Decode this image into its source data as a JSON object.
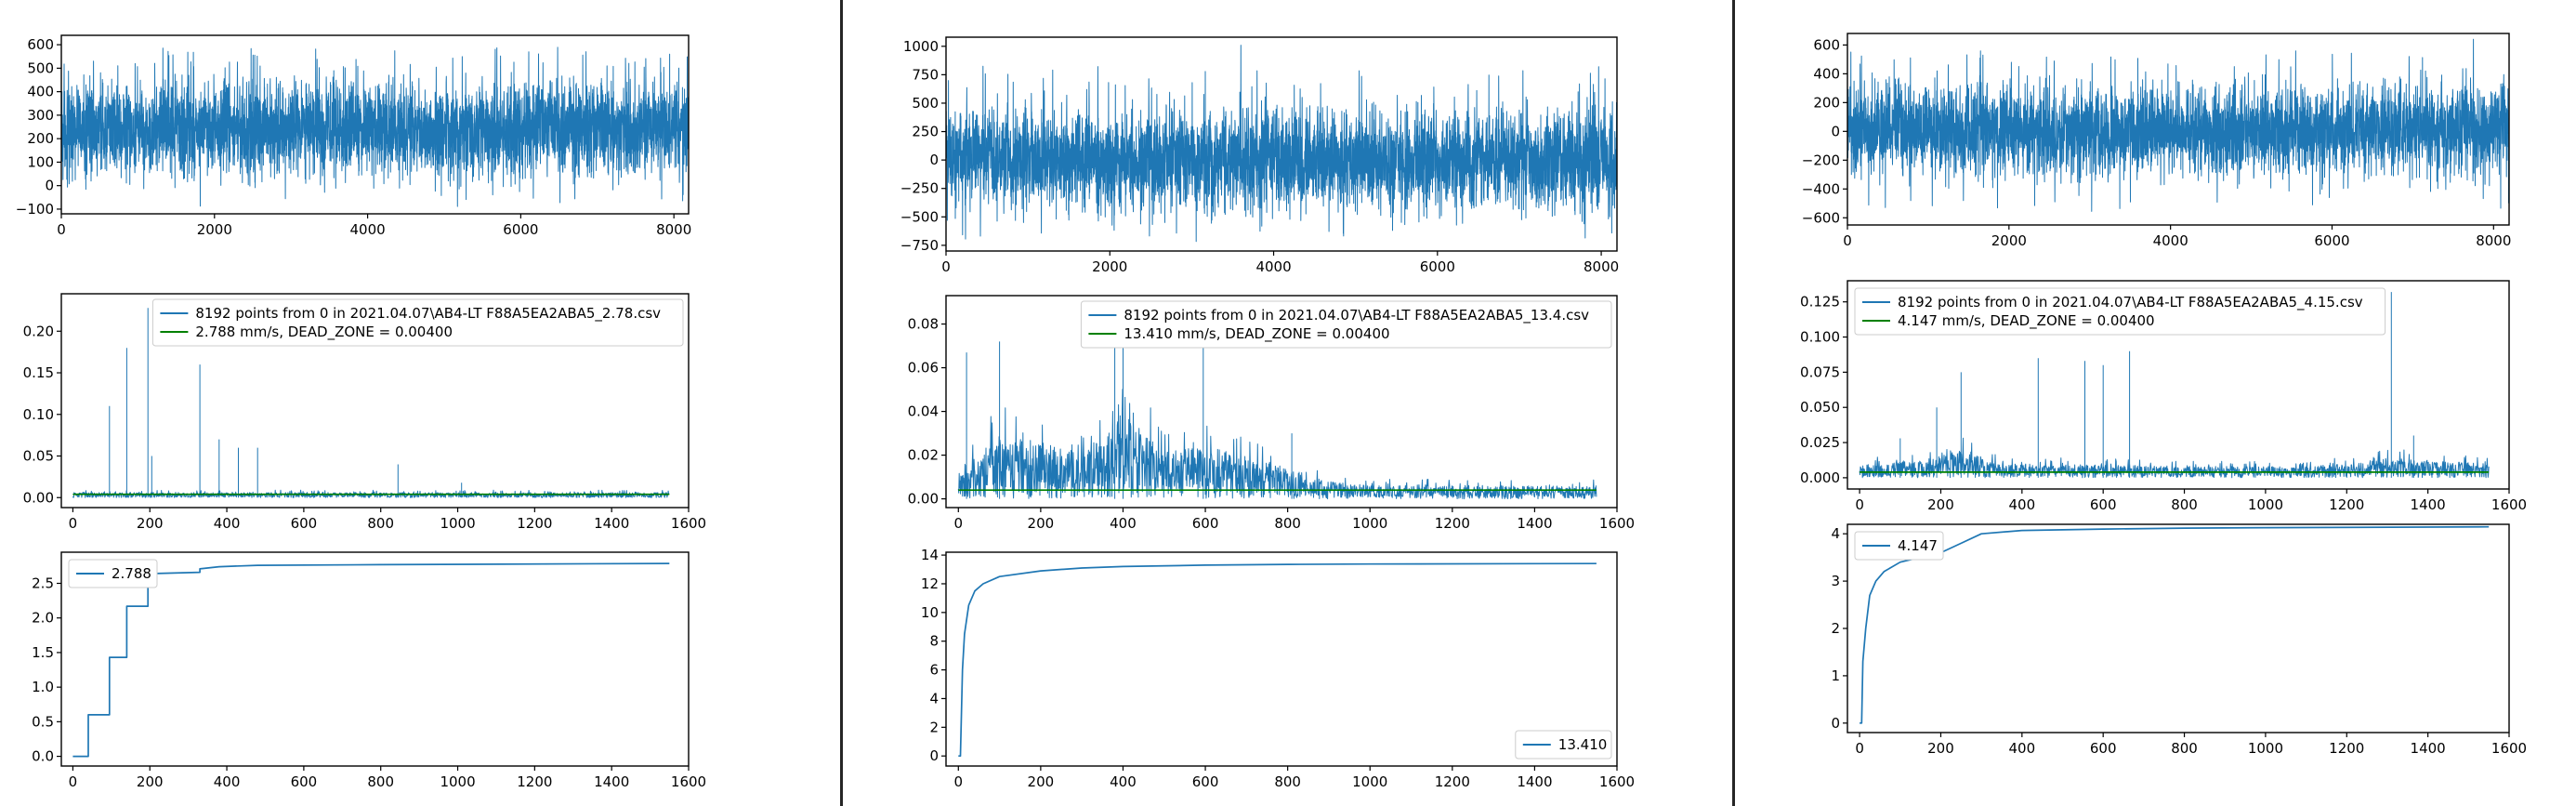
{
  "colors": {
    "blue": "#1f77b4",
    "green": "#008000",
    "divider": "#262626"
  },
  "chart_data": [
    {
      "type": "line",
      "position": "column-1 top",
      "xlim": [
        0,
        8192
      ],
      "ylim": [
        -120,
        640
      ],
      "xticks": [
        0,
        2000,
        4000,
        6000,
        8000
      ],
      "yticks": [
        -100,
        0,
        100,
        200,
        300,
        400,
        500,
        600
      ],
      "series": [
        {
          "color": "#1f77b4",
          "signal": {
            "n": 8192,
            "mean": 240,
            "spread": 95,
            "peak_min": 500,
            "peak_max": 590,
            "trough_min": -95,
            "trough_max": 40
          }
        }
      ],
      "legend": null
    },
    {
      "type": "line",
      "position": "column-1 middle",
      "xlim": [
        -30,
        1600
      ],
      "ylim": [
        -0.012,
        0.245
      ],
      "xticks": [
        0,
        200,
        400,
        600,
        800,
        1000,
        1200,
        1400,
        1600
      ],
      "yticks": [
        0.0,
        0.05,
        0.1,
        0.15,
        0.2
      ],
      "ytick_labels": [
        "0.00",
        "0.05",
        "0.10",
        "0.15",
        "0.20"
      ],
      "series": [
        {
          "name": "8192 points from 0  in  2021.04.07\\AB4-LT F88A5EA2ABA5_2.78.csv",
          "color": "#1f77b4",
          "spikes": [
            [
              95,
              0.11
            ],
            [
              140,
              0.18
            ],
            [
              195,
              0.228
            ],
            [
              205,
              0.05
            ],
            [
              330,
              0.16
            ],
            [
              380,
              0.07
            ],
            [
              430,
              0.06
            ],
            [
              480,
              0.06
            ],
            [
              845,
              0.04
            ],
            [
              1010,
              0.018
            ]
          ],
          "baseline": 0.006
        },
        {
          "name": "2.788 mm/s,   DEAD_ZONE = 0.00400",
          "color": "#008000",
          "constant": 0.004
        }
      ],
      "legend": "top-right"
    },
    {
      "type": "line",
      "position": "column-1 bottom",
      "xlim": [
        -30,
        1600
      ],
      "ylim": [
        -0.14,
        2.95
      ],
      "xticks": [
        0,
        200,
        400,
        600,
        800,
        1000,
        1200,
        1400,
        1600
      ],
      "yticks": [
        0.0,
        0.5,
        1.0,
        1.5,
        2.0,
        2.5
      ],
      "ytick_labels": [
        "0.0",
        "0.5",
        "1.0",
        "1.5",
        "2.0",
        "2.5"
      ],
      "series": [
        {
          "name": "2.788",
          "color": "#1f77b4",
          "points": [
            [
              0,
              0.0
            ],
            [
              40,
              0.0
            ],
            [
              40,
              0.6
            ],
            [
              95,
              0.6
            ],
            [
              95,
              1.43
            ],
            [
              140,
              1.43
            ],
            [
              140,
              2.17
            ],
            [
              195,
              2.17
            ],
            [
              195,
              2.64
            ],
            [
              330,
              2.66
            ],
            [
              330,
              2.71
            ],
            [
              380,
              2.74
            ],
            [
              480,
              2.76
            ],
            [
              800,
              2.77
            ],
            [
              1550,
              2.788
            ]
          ]
        }
      ],
      "legend": "top-left"
    },
    {
      "type": "line",
      "position": "column-2 top",
      "xlim": [
        0,
        8192
      ],
      "ylim": [
        -800,
        1080
      ],
      "xticks": [
        0,
        2000,
        4000,
        6000,
        8000
      ],
      "yticks": [
        -750,
        -500,
        -250,
        0,
        250,
        500,
        750,
        1000
      ],
      "series": [
        {
          "color": "#1f77b4",
          "signal": {
            "n": 8192,
            "mean": 0,
            "spread": 210,
            "peak_min": 550,
            "peak_max": 830,
            "trough_min": -720,
            "trough_max": -450,
            "max_spike": [
              3600,
              1010
            ]
          }
        }
      ],
      "legend": null
    },
    {
      "type": "line",
      "position": "column-2 middle",
      "xlim": [
        -30,
        1600
      ],
      "ylim": [
        -0.004,
        0.093
      ],
      "xticks": [
        0,
        200,
        400,
        600,
        800,
        1000,
        1200,
        1400,
        1600
      ],
      "yticks": [
        0.0,
        0.02,
        0.04,
        0.06,
        0.08
      ],
      "ytick_labels": [
        "0.00",
        "0.02",
        "0.04",
        "0.06",
        "0.08"
      ],
      "series": [
        {
          "name": "8192 points from 0  in  2021.04.07\\AB4-LT F88A5EA2ABA5_13.4.csv",
          "color": "#1f77b4",
          "envelope": [
            [
              0,
              0.012
            ],
            [
              100,
              0.03
            ],
            [
              200,
              0.026
            ],
            [
              300,
              0.02
            ],
            [
              400,
              0.04
            ],
            [
              500,
              0.022
            ],
            [
              600,
              0.024
            ],
            [
              700,
              0.02
            ],
            [
              800,
              0.014
            ],
            [
              900,
              0.008
            ],
            [
              1000,
              0.006
            ],
            [
              1550,
              0.006
            ]
          ],
          "spikes": [
            [
              20,
              0.067
            ],
            [
              100,
              0.072
            ],
            [
              380,
              0.088
            ],
            [
              400,
              0.085
            ],
            [
              595,
              0.073
            ],
            [
              810,
              0.03
            ]
          ]
        },
        {
          "name": "13.410 mm/s,   DEAD_ZONE = 0.00400",
          "color": "#008000",
          "constant": 0.004
        }
      ],
      "legend": "top-right"
    },
    {
      "type": "line",
      "position": "column-2 bottom",
      "xlim": [
        -30,
        1600
      ],
      "ylim": [
        -0.7,
        14.2
      ],
      "xticks": [
        0,
        200,
        400,
        600,
        800,
        1000,
        1200,
        1400,
        1600
      ],
      "yticks": [
        0,
        2,
        4,
        6,
        8,
        10,
        12,
        14
      ],
      "series": [
        {
          "name": "13.410",
          "color": "#1f77b4",
          "points": [
            [
              0,
              0
            ],
            [
              5,
              0
            ],
            [
              10,
              6
            ],
            [
              15,
              8.5
            ],
            [
              25,
              10.5
            ],
            [
              40,
              11.5
            ],
            [
              60,
              12
            ],
            [
              100,
              12.5
            ],
            [
              200,
              12.9
            ],
            [
              300,
              13.1
            ],
            [
              400,
              13.2
            ],
            [
              600,
              13.3
            ],
            [
              800,
              13.35
            ],
            [
              1000,
              13.38
            ],
            [
              1550,
              13.41
            ]
          ]
        }
      ],
      "legend": "bottom-right"
    },
    {
      "type": "line",
      "position": "column-3 top",
      "xlim": [
        0,
        8192
      ],
      "ylim": [
        -650,
        680
      ],
      "xticks": [
        0,
        2000,
        4000,
        6000,
        8000
      ],
      "yticks": [
        -600,
        -400,
        -200,
        0,
        200,
        400,
        600
      ],
      "series": [
        {
          "color": "#1f77b4",
          "signal": {
            "n": 8192,
            "mean": 0,
            "spread": 150,
            "peak_min": 320,
            "peak_max": 560,
            "trough_min": -560,
            "trough_max": -300,
            "max_spike": [
              7750,
              640
            ]
          }
        }
      ],
      "legend": null
    },
    {
      "type": "line",
      "position": "column-3 middle",
      "xlim": [
        -30,
        1600
      ],
      "ylim": [
        -0.008,
        0.14
      ],
      "xticks": [
        0,
        200,
        400,
        600,
        800,
        1000,
        1200,
        1400,
        1600
      ],
      "yticks": [
        0.0,
        0.025,
        0.05,
        0.075,
        0.1,
        0.125
      ],
      "ytick_labels": [
        "0.000",
        "0.025",
        "0.050",
        "0.075",
        "0.100",
        "0.125"
      ],
      "series": [
        {
          "name": "8192 points from 0  in  2021.04.07\\AB4-LT F88A5EA2ABA5_4.15.csv",
          "color": "#1f77b4",
          "envelope": [
            [
              0,
              0.009
            ],
            [
              150,
              0.012
            ],
            [
              250,
              0.02
            ],
            [
              350,
              0.01
            ],
            [
              600,
              0.009
            ],
            [
              900,
              0.008
            ],
            [
              1100,
              0.008
            ],
            [
              1200,
              0.01
            ],
            [
              1300,
              0.014
            ],
            [
              1400,
              0.012
            ],
            [
              1550,
              0.01
            ]
          ],
          "spikes": [
            [
              100,
              0.028
            ],
            [
              190,
              0.05
            ],
            [
              250,
              0.075
            ],
            [
              440,
              0.085
            ],
            [
              555,
              0.083
            ],
            [
              600,
              0.08
            ],
            [
              665,
              0.09
            ],
            [
              1310,
              0.132
            ],
            [
              1365,
              0.03
            ]
          ]
        },
        {
          "name": "4.147 mm/s,   DEAD_ZONE = 0.00400",
          "color": "#008000",
          "constant": 0.004
        }
      ],
      "legend": "top-left"
    },
    {
      "type": "line",
      "position": "column-3 bottom",
      "xlim": [
        -30,
        1600
      ],
      "ylim": [
        -0.2,
        4.2
      ],
      "xticks": [
        0,
        200,
        400,
        600,
        800,
        1000,
        1200,
        1400,
        1600
      ],
      "yticks": [
        0,
        1,
        2,
        3,
        4
      ],
      "series": [
        {
          "name": "4.147",
          "color": "#1f77b4",
          "points": [
            [
              0,
              0
            ],
            [
              5,
              0
            ],
            [
              8,
              1.3
            ],
            [
              15,
              2.0
            ],
            [
              25,
              2.7
            ],
            [
              40,
              3.0
            ],
            [
              60,
              3.2
            ],
            [
              100,
              3.4
            ],
            [
              150,
              3.5
            ],
            [
              200,
              3.6
            ],
            [
              250,
              3.8
            ],
            [
              300,
              4.0
            ],
            [
              400,
              4.07
            ],
            [
              600,
              4.1
            ],
            [
              800,
              4.12
            ],
            [
              1000,
              4.13
            ],
            [
              1550,
              4.147
            ]
          ]
        }
      ],
      "legend": "top-left"
    }
  ]
}
